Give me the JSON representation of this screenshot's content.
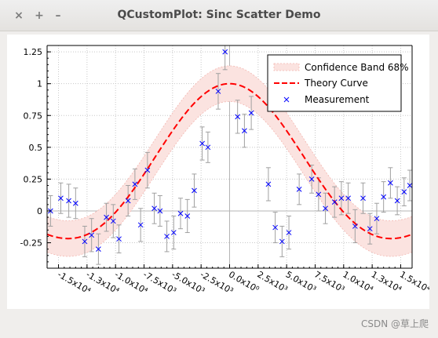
{
  "window": {
    "title": "QCustomPlot: Sinc Scatter Demo",
    "close_symbol": "×",
    "maximize_symbol": "+",
    "minimize_symbol": "–"
  },
  "watermark": "CSDN @草上爬",
  "chart_data": {
    "type": "scatter",
    "title": "",
    "xlabel": "",
    "ylabel": "",
    "xlim": [
      -16000,
      16000
    ],
    "ylim": [
      -0.45,
      1.3
    ],
    "grid": true,
    "legend_position": "top-right",
    "x_ticks": [
      {
        "value": -15000,
        "label": "-1.5x10⁴"
      },
      {
        "value": -12500,
        "label": "-1.3x10⁴"
      },
      {
        "value": -10000,
        "label": "-1.0x10⁴"
      },
      {
        "value": -7500,
        "label": "-7.5x10³"
      },
      {
        "value": -5000,
        "label": "-5.0x10³"
      },
      {
        "value": -2500,
        "label": "-2.5x10³"
      },
      {
        "value": 0,
        "label": "0.0x10⁰"
      },
      {
        "value": 2500,
        "label": "2.5x10³"
      },
      {
        "value": 5000,
        "label": "5.0x10³"
      },
      {
        "value": 7500,
        "label": "7.5x10³"
      },
      {
        "value": 10000,
        "label": "1.0x10⁴"
      },
      {
        "value": 12500,
        "label": "1.3x10⁴"
      },
      {
        "value": 15000,
        "label": "1.5x10⁴"
      }
    ],
    "y_ticks": [
      {
        "value": -0.25,
        "label": "-0.25"
      },
      {
        "value": 0,
        "label": "0"
      },
      {
        "value": 0.25,
        "label": "0.25"
      },
      {
        "value": 0.5,
        "label": "0.5"
      },
      {
        "value": 0.75,
        "label": "0.75"
      },
      {
        "value": 1,
        "label": "1"
      },
      {
        "value": 1.25,
        "label": "1.25"
      }
    ],
    "colors": {
      "band_fill": "#fbe3e0",
      "band_edge": "#f3b6b0",
      "theory": "#ff0000",
      "measurement": "#0000ff",
      "error_bar": "#a0a0a0",
      "grid": "#c8c8c8",
      "zero_line": "#b4b4b4"
    },
    "series": [
      {
        "name": "Confidence Band 68%",
        "kind": "band"
      },
      {
        "name": "Theory Curve",
        "kind": "line"
      },
      {
        "name": "Measurement",
        "kind": "points"
      }
    ],
    "curve_period": 3150,
    "band_halfwidth": 0.14,
    "measurements": [
      {
        "x": -15700,
        "y": 0.0,
        "err": 0.12
      },
      {
        "x": -14800,
        "y": 0.1,
        "err": 0.12
      },
      {
        "x": -14100,
        "y": 0.08,
        "err": 0.13
      },
      {
        "x": -13500,
        "y": 0.06,
        "err": 0.12
      },
      {
        "x": -12700,
        "y": -0.24,
        "err": 0.12
      },
      {
        "x": -12100,
        "y": -0.19,
        "err": 0.13
      },
      {
        "x": -11500,
        "y": -0.3,
        "err": 0.12
      },
      {
        "x": -10800,
        "y": -0.05,
        "err": 0.11
      },
      {
        "x": -10200,
        "y": -0.08,
        "err": 0.13
      },
      {
        "x": -9700,
        "y": -0.22,
        "err": 0.11
      },
      {
        "x": -8900,
        "y": 0.08,
        "err": 0.12
      },
      {
        "x": -8300,
        "y": 0.21,
        "err": 0.12
      },
      {
        "x": -7800,
        "y": -0.11,
        "err": 0.13
      },
      {
        "x": -7200,
        "y": 0.32,
        "err": 0.14
      },
      {
        "x": -6600,
        "y": 0.02,
        "err": 0.12
      },
      {
        "x": -6100,
        "y": 0.0,
        "err": 0.12
      },
      {
        "x": -5500,
        "y": -0.2,
        "err": 0.12
      },
      {
        "x": -4900,
        "y": -0.17,
        "err": 0.13
      },
      {
        "x": -4300,
        "y": -0.02,
        "err": 0.12
      },
      {
        "x": -3700,
        "y": -0.04,
        "err": 0.13
      },
      {
        "x": -3100,
        "y": 0.16,
        "err": 0.13
      },
      {
        "x": -2400,
        "y": 0.53,
        "err": 0.13
      },
      {
        "x": -1900,
        "y": 0.5,
        "err": 0.12
      },
      {
        "x": -1000,
        "y": 0.94,
        "err": 0.14
      },
      {
        "x": -400,
        "y": 1.25,
        "err": 0.14
      },
      {
        "x": 700,
        "y": 0.74,
        "err": 0.13
      },
      {
        "x": 1300,
        "y": 0.63,
        "err": 0.13
      },
      {
        "x": 1900,
        "y": 0.77,
        "err": 0.13
      },
      {
        "x": 3400,
        "y": 0.21,
        "err": 0.13
      },
      {
        "x": 4000,
        "y": -0.13,
        "err": 0.12
      },
      {
        "x": 4600,
        "y": -0.24,
        "err": 0.12
      },
      {
        "x": 5200,
        "y": -0.17,
        "err": 0.13
      },
      {
        "x": 6100,
        "y": 0.17,
        "err": 0.12
      },
      {
        "x": 7200,
        "y": 0.25,
        "err": 0.11
      },
      {
        "x": 7800,
        "y": 0.13,
        "err": 0.13
      },
      {
        "x": 8400,
        "y": 0.02,
        "err": 0.12
      },
      {
        "x": 9200,
        "y": 0.07,
        "err": 0.12
      },
      {
        "x": 9800,
        "y": 0.1,
        "err": 0.13
      },
      {
        "x": 10400,
        "y": 0.1,
        "err": 0.12
      },
      {
        "x": 11000,
        "y": -0.12,
        "err": 0.13
      },
      {
        "x": 11700,
        "y": 0.1,
        "err": 0.12
      },
      {
        "x": 12300,
        "y": -0.14,
        "err": 0.12
      },
      {
        "x": 12900,
        "y": -0.06,
        "err": 0.12
      },
      {
        "x": 13500,
        "y": 0.11,
        "err": 0.12
      },
      {
        "x": 14100,
        "y": 0.22,
        "err": 0.12
      },
      {
        "x": 14700,
        "y": 0.08,
        "err": 0.11
      },
      {
        "x": 15300,
        "y": 0.15,
        "err": 0.11
      },
      {
        "x": 15800,
        "y": 0.2,
        "err": 0.12
      }
    ]
  }
}
